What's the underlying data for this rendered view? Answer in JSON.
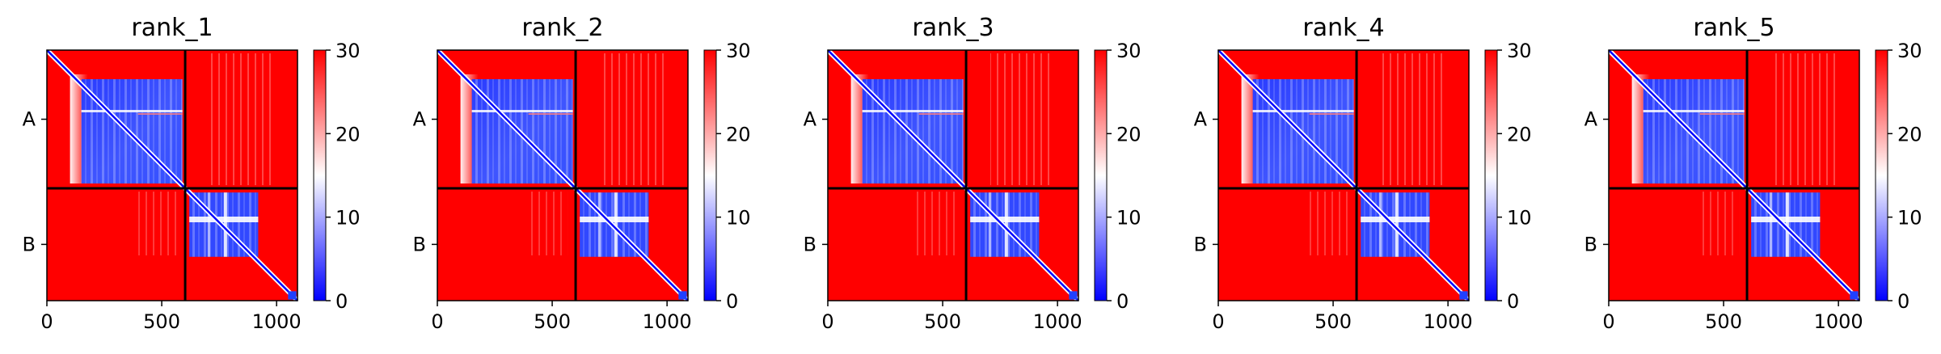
{
  "chart_data": {
    "type": "heatmap",
    "panels": [
      {
        "title": "rank_1"
      },
      {
        "title": "rank_2"
      },
      {
        "title": "rank_3"
      },
      {
        "title": "rank_4"
      },
      {
        "title": "rank_5"
      }
    ],
    "x_ticks": [
      "0",
      "500",
      "1000"
    ],
    "x_tick_values": [
      0,
      500,
      1000
    ],
    "xlim": [
      0,
      1091
    ],
    "ylim": [
      0,
      1091
    ],
    "chain_boundary": 602,
    "chain_labels": [
      "A",
      "B"
    ],
    "chain_label_centers": [
      301,
      846
    ],
    "colorbar": {
      "ticks": [
        "0",
        "10",
        "20",
        "30"
      ],
      "tick_values": [
        0,
        10,
        20,
        30
      ],
      "range": [
        0,
        30
      ],
      "colormap": [
        "#0000ff",
        "#ffffff",
        "#ff0000"
      ]
    },
    "grid": false,
    "legend": "none"
  }
}
